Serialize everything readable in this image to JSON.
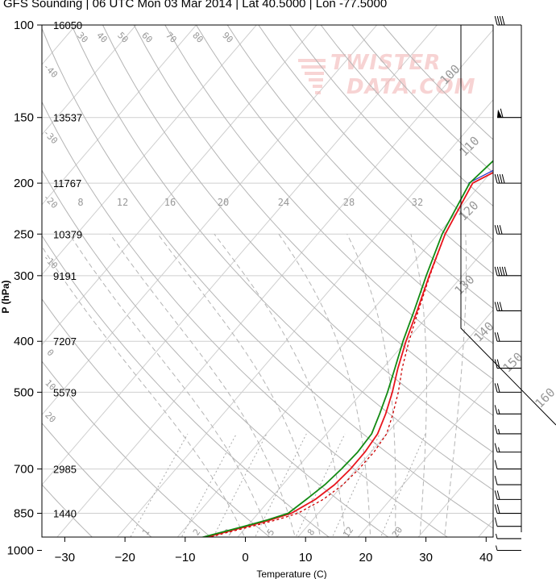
{
  "title": "GFS Sounding | 06 UTC Mon 03 Mar 2014 | Lat 40.5000 | Lon -77.5000",
  "watermark": [
    "TWISTER",
    "DATA.COM"
  ],
  "colors": {
    "temp": "#e8141c",
    "dewpoint": "#138a13",
    "virtual": "#2030c8",
    "grid": "#cfcfcf",
    "guide": "#b4b4b4"
  },
  "chart_data": {
    "type": "skew-t",
    "xlabel": "Temperature (C)",
    "ylabel": "P (hPa)",
    "x_ticks": [
      -30,
      -20,
      -10,
      0,
      10,
      20,
      30,
      40
    ],
    "pressure_ticks": [
      100,
      150,
      200,
      250,
      300,
      400,
      500,
      700,
      850,
      1000
    ],
    "heights": [
      "16050",
      "13537",
      "11767",
      "10379",
      "9191",
      "7207",
      "5579",
      "2985",
      "1440"
    ],
    "height_levels": [
      100,
      150,
      200,
      250,
      300,
      400,
      500,
      700,
      850
    ],
    "dry_adiabat_labels": [
      "-40",
      "-30",
      "-20",
      "-10",
      "0",
      "10",
      "20",
      "30",
      "40",
      "50",
      "60",
      "70",
      "80",
      "90",
      "100",
      "110",
      "120",
      "130",
      "140",
      "150",
      "160"
    ],
    "moist_adiabat_labels": [
      "8",
      "12",
      "16",
      "20",
      "24",
      "28",
      "32"
    ],
    "mixing_ratio_labels": [
      "1",
      "2",
      "3",
      "5",
      "8",
      "12",
      "20"
    ],
    "temperature": [
      [
        1000,
        -6.0
      ],
      [
        975,
        -6.5
      ],
      [
        950,
        -6.0
      ],
      [
        925,
        -3.0
      ],
      [
        900,
        0.0
      ],
      [
        875,
        3.0
      ],
      [
        850,
        5.5
      ],
      [
        800,
        7.5
      ],
      [
        750,
        8.6
      ],
      [
        700,
        9.0
      ],
      [
        650,
        9.0
      ],
      [
        600,
        8.5
      ],
      [
        550,
        7.0
      ],
      [
        500,
        5.0
      ],
      [
        450,
        2.5
      ],
      [
        400,
        0.0
      ],
      [
        350,
        -2.5
      ],
      [
        300,
        -5.5
      ],
      [
        250,
        -8.8
      ],
      [
        200,
        -11.5
      ],
      [
        175,
        -6.0
      ],
      [
        150,
        1.8
      ],
      [
        125,
        7.0
      ],
      [
        100,
        12.5
      ]
    ],
    "dewpoint": [
      [
        1000,
        -6.5
      ],
      [
        975,
        -7.0
      ],
      [
        950,
        -6.5
      ],
      [
        925,
        -3.5
      ],
      [
        900,
        -0.5
      ],
      [
        875,
        2.5
      ],
      [
        850,
        5.0
      ],
      [
        800,
        6.0
      ],
      [
        750,
        7.0
      ],
      [
        700,
        7.5
      ],
      [
        650,
        7.8
      ],
      [
        600,
        7.5
      ],
      [
        550,
        6.0
      ],
      [
        500,
        4.2
      ],
      [
        450,
        2.0
      ],
      [
        400,
        -0.5
      ],
      [
        350,
        -3.0
      ],
      [
        300,
        -6.0
      ],
      [
        250,
        -9.3
      ],
      [
        200,
        -12.0
      ],
      [
        175,
        -11.0
      ],
      [
        150,
        -7.0
      ],
      [
        125,
        -6.5
      ],
      [
        100,
        -4.0
      ]
    ],
    "virtual_temperature": [
      [
        1000,
        -5.5
      ],
      [
        975,
        -6.0
      ],
      [
        950,
        -5.4
      ],
      [
        925,
        -2.4
      ],
      [
        900,
        0.8
      ],
      [
        875,
        4.0
      ],
      [
        850,
        6.6
      ],
      [
        800,
        8.8
      ],
      [
        750,
        10.0
      ],
      [
        700,
        10.4
      ],
      [
        650,
        10.5
      ],
      [
        600,
        10.0
      ],
      [
        550,
        8.2
      ],
      [
        500,
        6.0
      ],
      [
        450,
        3.2
      ],
      [
        400,
        0.5
      ],
      [
        350,
        -2.3
      ],
      [
        300,
        -5.4
      ],
      [
        250,
        -8.8
      ],
      [
        200,
        -11.5
      ],
      [
        175,
        -6.0
      ],
      [
        150,
        1.8
      ],
      [
        125,
        7.0
      ],
      [
        100,
        12.5
      ]
    ],
    "wind_barbs": [
      {
        "p": 100,
        "barbs": [
          10,
          10,
          10,
          10
        ]
      },
      {
        "p": 150,
        "barbs": [
          50,
          10
        ]
      },
      {
        "p": 200,
        "barbs": [
          10,
          10,
          10,
          10
        ]
      },
      {
        "p": 250,
        "barbs": [
          10,
          10,
          10
        ]
      },
      {
        "p": 300,
        "barbs": [
          10,
          10,
          10,
          10,
          10
        ]
      },
      {
        "p": 350,
        "barbs": [
          10,
          10,
          10
        ]
      },
      {
        "p": 400,
        "barbs": [
          10,
          10
        ]
      },
      {
        "p": 450,
        "barbs": [
          10,
          10
        ]
      },
      {
        "p": 500,
        "barbs": [
          10,
          10
        ]
      },
      {
        "p": 550,
        "barbs": [
          10,
          5
        ]
      },
      {
        "p": 600,
        "barbs": [
          10,
          5
        ]
      },
      {
        "p": 650,
        "barbs": [
          10,
          5
        ]
      },
      {
        "p": 700,
        "barbs": [
          10
        ]
      },
      {
        "p": 750,
        "barbs": [
          10
        ]
      },
      {
        "p": 800,
        "barbs": [
          10,
          10
        ]
      },
      {
        "p": 850,
        "barbs": [
          10,
          10
        ]
      },
      {
        "p": 900,
        "barbs": [
          10
        ]
      },
      {
        "p": 950,
        "barbs": [
          5
        ]
      },
      {
        "p": 1000,
        "barbs": [
          5
        ]
      }
    ]
  }
}
